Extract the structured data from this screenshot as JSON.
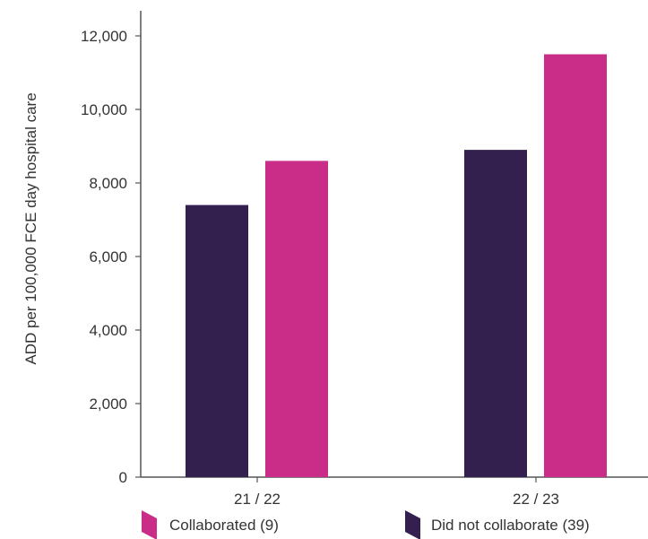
{
  "chart_data": {
    "type": "bar",
    "title": "",
    "xlabel": "",
    "ylabel": "ADD per 100,000 FCE day hospital care",
    "categories": [
      "21 / 22",
      "22 / 23"
    ],
    "series": [
      {
        "name": "Did not collaborate (39)",
        "color": "#33204e",
        "values": [
          7400,
          8900
        ]
      },
      {
        "name": "Collaborated (9)",
        "color": "#c92d88",
        "values": [
          8600,
          11500
        ]
      }
    ],
    "ylim": [
      0,
      13000
    ],
    "yticks": [
      0,
      2000,
      4000,
      6000,
      8000,
      10000,
      12000
    ],
    "ytick_labels": [
      "0",
      "2,000",
      "4,000",
      "6,000",
      "8,000",
      "10,000",
      "12,000"
    ],
    "grid": false,
    "legend": {
      "placement": "bottom",
      "order": [
        "Collaborated (9)",
        "Did not collaborate (39)"
      ]
    },
    "colors": {
      "axis": "#555555",
      "text": "#333333"
    }
  }
}
